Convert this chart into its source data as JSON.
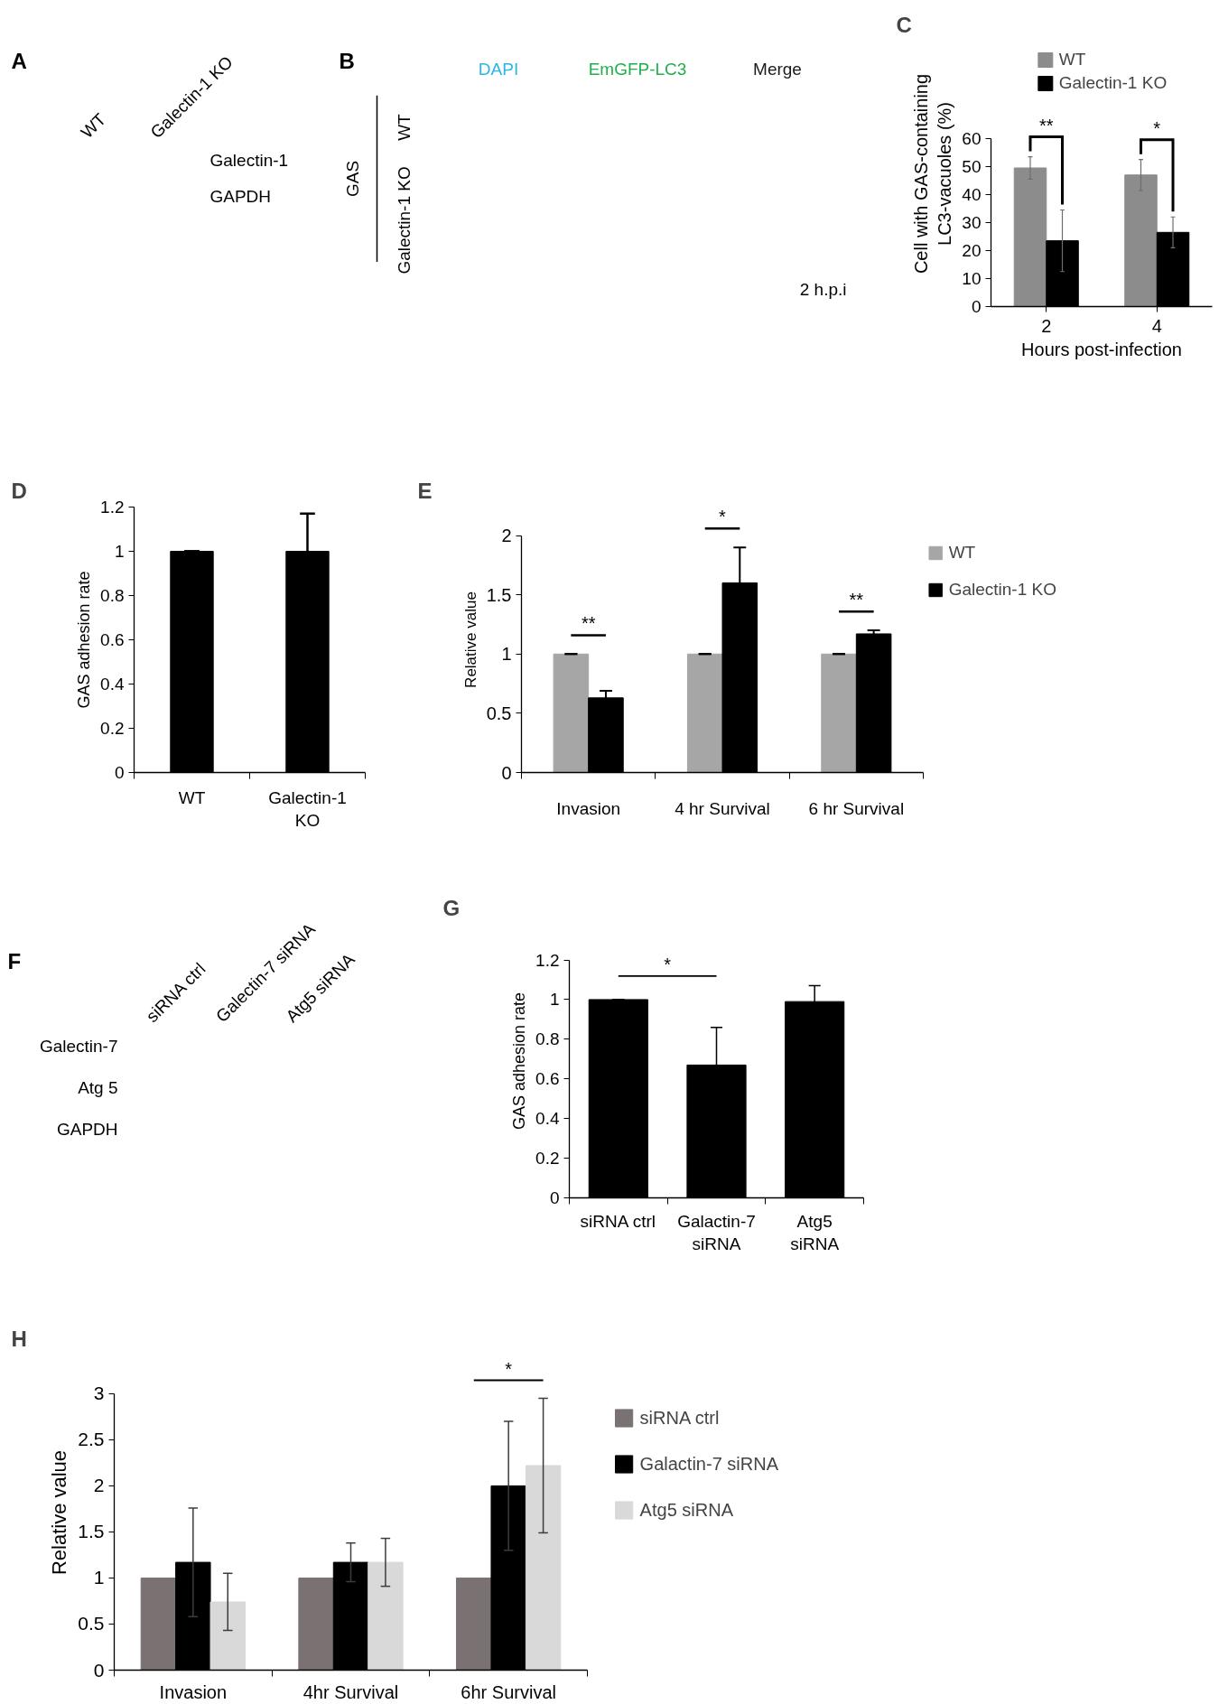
{
  "chart_data": [
    {
      "type": "other",
      "title": "A",
      "categories": [
        "WT",
        "Galectin-1 KO"
      ],
      "y_categories": [
        "Galectin-1",
        "GAPDH"
      ]
    },
    {
      "type": "other",
      "title": "B",
      "categories": [
        "DAPI",
        "EmGFP-LC3",
        "Merge"
      ],
      "colors": [
        "#29b5e8",
        "#20b04b",
        "#1a1a1a"
      ],
      "y_categories": [
        "WT",
        "Galectin-1 KO"
      ],
      "ylabel": "GAS",
      "annotations": [
        "2 h.p.i"
      ]
    },
    {
      "type": "bar",
      "title": "C",
      "categories": [
        "2",
        "4"
      ],
      "series": [
        {
          "name": "WT",
          "color": "#8c8c8c",
          "values": [
            49.5,
            47
          ],
          "errors": [
            4,
            5.5
          ]
        },
        {
          "name": "Galectin-1 KO",
          "color": "#000000",
          "values": [
            23.5,
            26.5
          ],
          "errors": [
            11,
            5.5
          ]
        }
      ],
      "xlabel": "Hours post-infection",
      "ylabel": "Cell with GAS-containing\nLC3-vacuoles (%)",
      "ylim": [
        0,
        60
      ],
      "yticks": [
        0,
        10,
        20,
        30,
        40,
        50,
        60
      ],
      "legend": "top",
      "annotations": [
        "**",
        "*"
      ]
    },
    {
      "type": "bar",
      "title": "D",
      "categories": [
        "WT",
        "Galectin-1\nKO"
      ],
      "values": [
        1,
        1
      ],
      "errors": [
        0,
        0.17
      ],
      "color": "#000000",
      "ylabel": "GAS adhesion rate",
      "ylim": [
        0,
        1.2
      ],
      "yticks": [
        0,
        0.2,
        0.4,
        0.6,
        0.8,
        1,
        1.2
      ]
    },
    {
      "type": "bar",
      "title": "E",
      "categories": [
        "Invasion",
        "4 hr Survival",
        "6 hr Survival"
      ],
      "series": [
        {
          "name": "WT",
          "color": "#a6a6a6",
          "values": [
            1,
            1,
            1
          ],
          "errors": [
            0,
            0,
            0
          ]
        },
        {
          "name": "Galectin-1 KO",
          "color": "#000000",
          "values": [
            0.63,
            1.6,
            1.17
          ],
          "errors": [
            0.06,
            0.3,
            0.03
          ]
        }
      ],
      "ylabel": "Relative value",
      "ylim": [
        0,
        2
      ],
      "yticks": [
        0,
        0.5,
        1,
        1.5,
        2
      ],
      "legend": "top right",
      "annotations": [
        "**",
        "*",
        "**"
      ]
    },
    {
      "type": "other",
      "title": "F",
      "categories": [
        "siRNA ctrl",
        "Galectin-7 siRNA",
        "Atg5 siRNA"
      ],
      "y_categories": [
        "Galectin-7",
        "Atg 5",
        "GAPDH"
      ]
    },
    {
      "type": "bar",
      "title": "G",
      "categories": [
        "siRNA ctrl",
        "Galactin-7\nsiRNA",
        "Atg5\nsiRNA"
      ],
      "values": [
        1,
        0.67,
        0.99
      ],
      "errors": [
        0,
        0.19,
        0.08
      ],
      "color": "#000000",
      "ylabel": "GAS adhesion rate",
      "ylim": [
        0,
        1.2
      ],
      "yticks": [
        0,
        0.2,
        0.4,
        0.6,
        0.8,
        1,
        1.2
      ],
      "annotations": [
        "*"
      ]
    },
    {
      "type": "bar",
      "title": "H",
      "categories": [
        "Invasion",
        "4hr Survival",
        "6hr Survival"
      ],
      "series": [
        {
          "name": "siRNA ctrl",
          "color": "#7a7272",
          "values": [
            1,
            1,
            1
          ],
          "errors": [
            null,
            null,
            null
          ]
        },
        {
          "name": "Galactin-7 siRNA",
          "color": "#000000",
          "values": [
            1.17,
            1.17,
            2
          ],
          "errors": [
            0.59,
            0.21,
            0.7
          ]
        },
        {
          "name": "Atg5 siRNA",
          "color": "#d9d9d9",
          "values": [
            0.74,
            1.17,
            2.22
          ],
          "errors": [
            0.31,
            0.26,
            0.73
          ]
        }
      ],
      "ylabel": "Relative value",
      "ylim": [
        0,
        3
      ],
      "yticks": [
        0,
        0.5,
        1,
        1.5,
        2,
        2.5,
        3
      ],
      "legend": "top right",
      "annotations": [
        "*"
      ]
    }
  ]
}
